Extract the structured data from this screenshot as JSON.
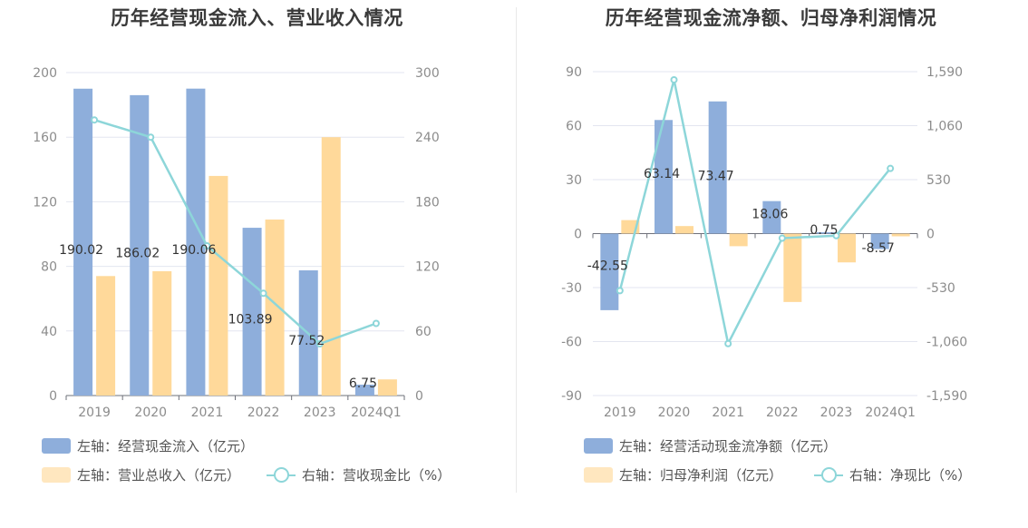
{
  "colors": {
    "bar_primary": "#8eaedb",
    "bar_secondary": "#ffd99a",
    "line": "#8dd6d9",
    "grid": "#e3e6f0",
    "axis": "#6e7079"
  },
  "chart_data": [
    {
      "type": "bar",
      "title": "历年经营现金流入、营业收入情况",
      "categories": [
        "2019",
        "2020",
        "2021",
        "2022",
        "2023",
        "2024Q1"
      ],
      "left_axis": {
        "ticks": [
          "0",
          "40",
          "80",
          "120",
          "160",
          "200"
        ],
        "ylim": [
          0,
          200
        ]
      },
      "right_axis": {
        "ticks": [
          "0",
          "60",
          "120",
          "180",
          "240",
          "300"
        ],
        "ylim": [
          0,
          300
        ]
      },
      "series": [
        {
          "name": "左轴：经营现金流入（亿元）",
          "kind": "bar",
          "axis": "left",
          "values": [
            190.02,
            186.02,
            190.06,
            103.89,
            77.52,
            6.75
          ],
          "labels": [
            "190.02",
            "186.02",
            "190.06",
            "103.89",
            "77.52",
            "6.75"
          ]
        },
        {
          "name": "左轴：营业总收入（亿元）",
          "kind": "bar",
          "axis": "left",
          "values": [
            74,
            77,
            136,
            109,
            160,
            10
          ]
        },
        {
          "name": "右轴：营收现金比（%）",
          "kind": "line",
          "axis": "right",
          "values": [
            256,
            240,
            139,
            95,
            48,
            67
          ]
        }
      ]
    },
    {
      "type": "bar",
      "title": "历年经营现金流净额、归母净利润情况",
      "categories": [
        "2019",
        "2020",
        "2021",
        "2022",
        "2023",
        "2024Q1"
      ],
      "left_axis": {
        "ticks": [
          "-90",
          "-60",
          "-30",
          "0",
          "30",
          "60",
          "90"
        ],
        "ylim": [
          -90,
          90
        ]
      },
      "right_axis": {
        "ticks": [
          "-1,590",
          "-1,060",
          "-530",
          "0",
          "530",
          "1,060",
          "1,590"
        ],
        "ylim": [
          -1590,
          1590
        ]
      },
      "series": [
        {
          "name": "左轴：经营活动现金流净额（亿元）",
          "kind": "bar",
          "axis": "left",
          "values": [
            -42.55,
            63.14,
            73.47,
            18.06,
            0.75,
            -8.57
          ],
          "labels": [
            "-42.55",
            "63.14",
            "73.47",
            "18.06",
            "0.75",
            "-8.57"
          ]
        },
        {
          "name": "左轴：归母净利润（亿元）",
          "kind": "bar",
          "axis": "left",
          "values": [
            7.5,
            4.2,
            -7,
            -38,
            -16,
            -1.5
          ]
        },
        {
          "name": "右轴：净现比（%）",
          "kind": "line",
          "axis": "right",
          "values": [
            -560,
            1510,
            -1080,
            -45,
            -20,
            640
          ]
        }
      ]
    }
  ]
}
